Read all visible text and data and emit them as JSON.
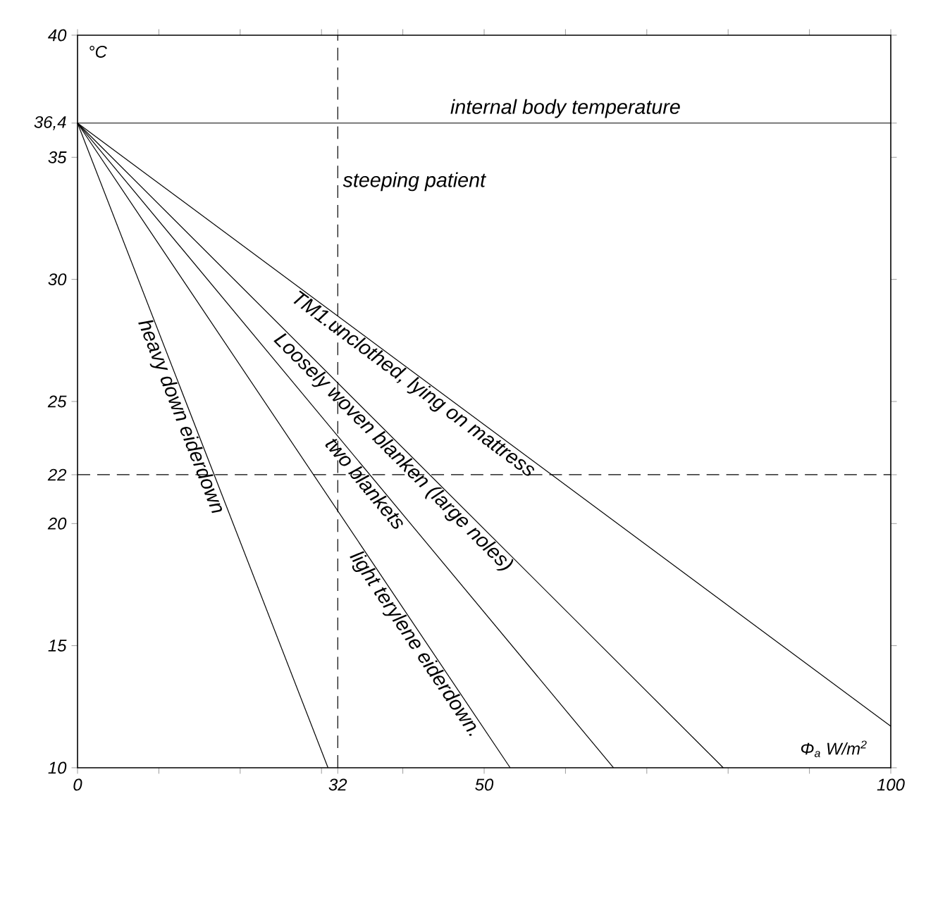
{
  "chart_data": {
    "type": "line",
    "xlabel": "Φ$_{a}$ W/m$^{2}$",
    "ylabel": "°C",
    "xlim": [
      0,
      100
    ],
    "ylim": [
      10,
      40
    ],
    "xticks": [
      0,
      {
        "value": 10,
        "label": null
      },
      {
        "value": 20,
        "label": null
      },
      {
        "value": 30,
        "label": null
      },
      32,
      {
        "value": 40,
        "label": null
      },
      50,
      {
        "value": 60,
        "label": null
      },
      {
        "value": 70,
        "label": null
      },
      {
        "value": 80,
        "label": null
      },
      {
        "value": 90,
        "label": null
      },
      100
    ],
    "yticks": [
      10,
      15,
      20,
      22,
      25,
      30,
      35,
      {
        "value": 36.4,
        "label": "36,4"
      },
      40
    ],
    "series": [
      {
        "name": "heavy down eiderdown",
        "color": "#000000",
        "x": [
          0,
          30.8
        ],
        "values": [
          36.4,
          10
        ]
      },
      {
        "name": "light terylene eiderdown.",
        "color": "#000000",
        "x": [
          0,
          53.2
        ],
        "values": [
          36.4,
          10
        ]
      },
      {
        "name": "two blankets",
        "color": "#000000",
        "x": [
          0,
          65.9
        ],
        "values": [
          36.4,
          10
        ]
      },
      {
        "name": "Loosely woven blanken (large noles)",
        "color": "#000000",
        "x": [
          0,
          79.4
        ],
        "values": [
          36.4,
          10
        ]
      },
      {
        "name": "TM1.unclothed, lying on mattress",
        "color": "#000000",
        "x": [
          0,
          100
        ],
        "values": [
          36.4,
          11.7
        ]
      }
    ],
    "ref_lines": [
      {
        "axis": "y",
        "value": 36.4,
        "label": "internal body temperature",
        "line_style": "solid"
      },
      {
        "axis": "y",
        "value": 22,
        "line_style": "dashed"
      },
      {
        "axis": "x",
        "value": 32,
        "label": "steeping patient",
        "line_style": "dashed"
      }
    ],
    "grid": false,
    "line_style": "solid"
  }
}
